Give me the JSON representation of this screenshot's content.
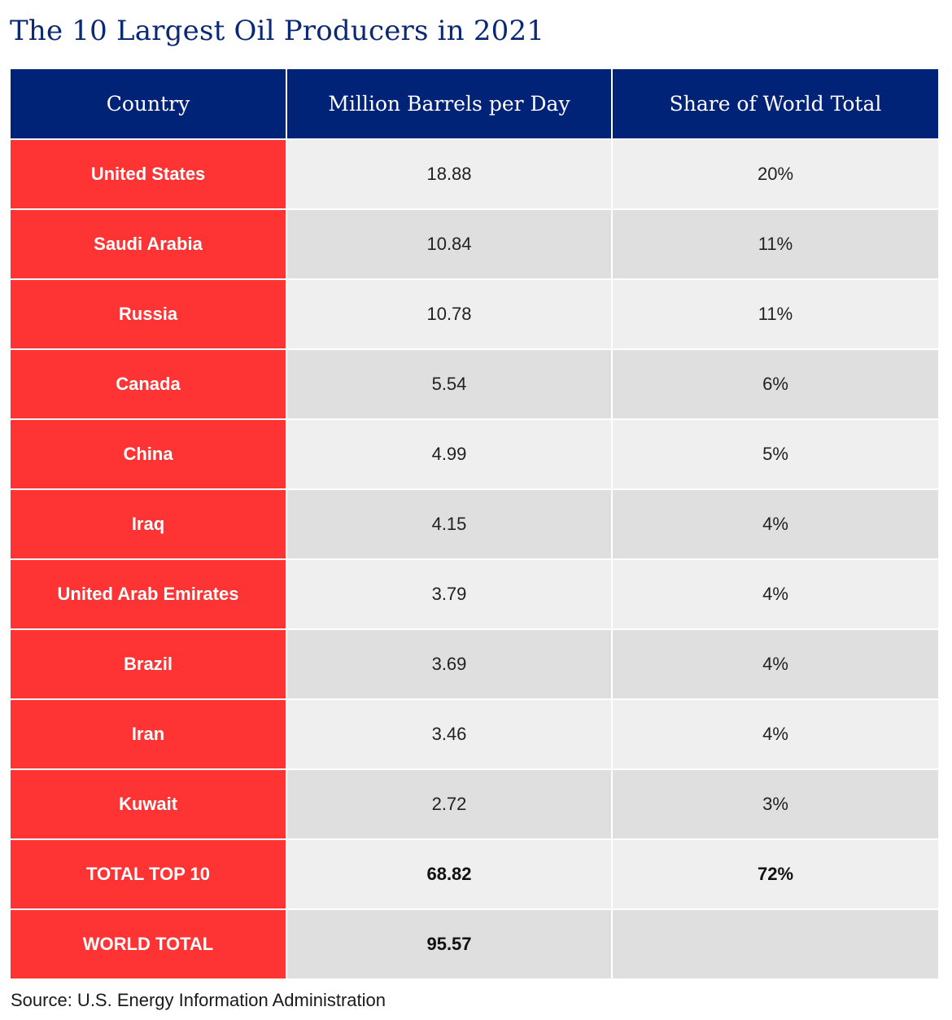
{
  "chart_data": {
    "type": "table",
    "title": "The 10 Largest Oil Producers in 2021",
    "columns": [
      "Country",
      "Million Barrels per Day",
      "Share of World Total"
    ],
    "rows": [
      {
        "country": "United States",
        "barrels": "18.88",
        "share": "20%"
      },
      {
        "country": "Saudi Arabia",
        "barrels": "10.84",
        "share": "11%"
      },
      {
        "country": "Russia",
        "barrels": "10.78",
        "share": "11%"
      },
      {
        "country": "Canada",
        "barrels": "5.54",
        "share": "6%"
      },
      {
        "country": "China",
        "barrels": "4.99",
        "share": "5%"
      },
      {
        "country": "Iraq",
        "barrels": "4.15",
        "share": "4%"
      },
      {
        "country": "United Arab Emirates",
        "barrels": "3.79",
        "share": "4%"
      },
      {
        "country": "Brazil",
        "barrels": "3.69",
        "share": "4%"
      },
      {
        "country": "Iran",
        "barrels": "3.46",
        "share": "4%"
      },
      {
        "country": "Kuwait",
        "barrels": "2.72",
        "share": "3%"
      }
    ],
    "summary_rows": [
      {
        "country": "TOTAL TOP 10",
        "barrels": "68.82",
        "share": "72%"
      },
      {
        "country": "WORLD TOTAL",
        "barrels": "95.57",
        "share": ""
      }
    ],
    "source": "Source: U.S. Energy Information Administration"
  },
  "colors": {
    "header_bg": "#002377",
    "country_bg": "#fd3334",
    "row_light": "#efefef",
    "row_dark": "#dfdfdf",
    "title": "#0b2874"
  }
}
